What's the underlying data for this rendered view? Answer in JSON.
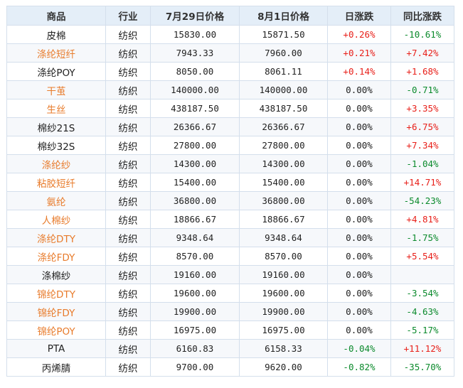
{
  "colors": {
    "up": "#e8201a",
    "down": "#0b8a2c",
    "link": "#e87b2b",
    "header_bg": "#e4eef8",
    "border": "#d4dfec"
  },
  "table": {
    "headers": [
      "商品",
      "行业",
      "7月29日价格",
      "8月1日价格",
      "日涨跌",
      "同比涨跌"
    ],
    "rows": [
      {
        "name": "皮棉",
        "link": false,
        "industry": "纺织",
        "price_0729": "15830.00",
        "price_0801": "15871.50",
        "day_change": "+0.26%",
        "day_dir": "up",
        "yoy_change": "-10.61%",
        "yoy_dir": "down"
      },
      {
        "name": "涤纶短纤",
        "link": true,
        "industry": "纺织",
        "price_0729": "7943.33",
        "price_0801": "7960.00",
        "day_change": "+0.21%",
        "day_dir": "up",
        "yoy_change": "+7.42%",
        "yoy_dir": "up"
      },
      {
        "name": "涤纶POY",
        "link": false,
        "industry": "纺织",
        "price_0729": "8050.00",
        "price_0801": "8061.11",
        "day_change": "+0.14%",
        "day_dir": "up",
        "yoy_change": "+1.68%",
        "yoy_dir": "up"
      },
      {
        "name": "干茧",
        "link": true,
        "industry": "纺织",
        "price_0729": "140000.00",
        "price_0801": "140000.00",
        "day_change": "0.00%",
        "day_dir": "flat",
        "yoy_change": "-0.71%",
        "yoy_dir": "down"
      },
      {
        "name": "生丝",
        "link": true,
        "industry": "纺织",
        "price_0729": "438187.50",
        "price_0801": "438187.50",
        "day_change": "0.00%",
        "day_dir": "flat",
        "yoy_change": "+3.35%",
        "yoy_dir": "up"
      },
      {
        "name": "棉纱21S",
        "link": false,
        "industry": "纺织",
        "price_0729": "26366.67",
        "price_0801": "26366.67",
        "day_change": "0.00%",
        "day_dir": "flat",
        "yoy_change": "+6.75%",
        "yoy_dir": "up"
      },
      {
        "name": "棉纱32S",
        "link": false,
        "industry": "纺织",
        "price_0729": "27800.00",
        "price_0801": "27800.00",
        "day_change": "0.00%",
        "day_dir": "flat",
        "yoy_change": "+7.34%",
        "yoy_dir": "up"
      },
      {
        "name": "涤纶纱",
        "link": true,
        "industry": "纺织",
        "price_0729": "14300.00",
        "price_0801": "14300.00",
        "day_change": "0.00%",
        "day_dir": "flat",
        "yoy_change": "-1.04%",
        "yoy_dir": "down"
      },
      {
        "name": "粘胶短纤",
        "link": true,
        "industry": "纺织",
        "price_0729": "15400.00",
        "price_0801": "15400.00",
        "day_change": "0.00%",
        "day_dir": "flat",
        "yoy_change": "+14.71%",
        "yoy_dir": "up"
      },
      {
        "name": "氨纶",
        "link": true,
        "industry": "纺织",
        "price_0729": "36800.00",
        "price_0801": "36800.00",
        "day_change": "0.00%",
        "day_dir": "flat",
        "yoy_change": "-54.23%",
        "yoy_dir": "down"
      },
      {
        "name": "人棉纱",
        "link": true,
        "industry": "纺织",
        "price_0729": "18866.67",
        "price_0801": "18866.67",
        "day_change": "0.00%",
        "day_dir": "flat",
        "yoy_change": "+4.81%",
        "yoy_dir": "up"
      },
      {
        "name": "涤纶DTY",
        "link": true,
        "industry": "纺织",
        "price_0729": "9348.64",
        "price_0801": "9348.64",
        "day_change": "0.00%",
        "day_dir": "flat",
        "yoy_change": "-1.75%",
        "yoy_dir": "down"
      },
      {
        "name": "涤纶FDY",
        "link": true,
        "industry": "纺织",
        "price_0729": "8570.00",
        "price_0801": "8570.00",
        "day_change": "0.00%",
        "day_dir": "flat",
        "yoy_change": "+5.54%",
        "yoy_dir": "up"
      },
      {
        "name": "涤棉纱",
        "link": false,
        "industry": "纺织",
        "price_0729": "19160.00",
        "price_0801": "19160.00",
        "day_change": "0.00%",
        "day_dir": "flat",
        "yoy_change": "",
        "yoy_dir": "flat"
      },
      {
        "name": "锦纶DTY",
        "link": true,
        "industry": "纺织",
        "price_0729": "19600.00",
        "price_0801": "19600.00",
        "day_change": "0.00%",
        "day_dir": "flat",
        "yoy_change": "-3.54%",
        "yoy_dir": "down"
      },
      {
        "name": "锦纶FDY",
        "link": true,
        "industry": "纺织",
        "price_0729": "19900.00",
        "price_0801": "19900.00",
        "day_change": "0.00%",
        "day_dir": "flat",
        "yoy_change": "-4.63%",
        "yoy_dir": "down"
      },
      {
        "name": "锦纶POY",
        "link": true,
        "industry": "纺织",
        "price_0729": "16975.00",
        "price_0801": "16975.00",
        "day_change": "0.00%",
        "day_dir": "flat",
        "yoy_change": "-5.17%",
        "yoy_dir": "down"
      },
      {
        "name": "PTA",
        "link": false,
        "industry": "纺织",
        "price_0729": "6160.83",
        "price_0801": "6158.33",
        "day_change": "-0.04%",
        "day_dir": "down",
        "yoy_change": "+11.12%",
        "yoy_dir": "up"
      },
      {
        "name": "丙烯腈",
        "link": false,
        "industry": "纺织",
        "price_0729": "9700.00",
        "price_0801": "9620.00",
        "day_change": "-0.82%",
        "day_dir": "down",
        "yoy_change": "-35.70%",
        "yoy_dir": "down"
      }
    ]
  }
}
